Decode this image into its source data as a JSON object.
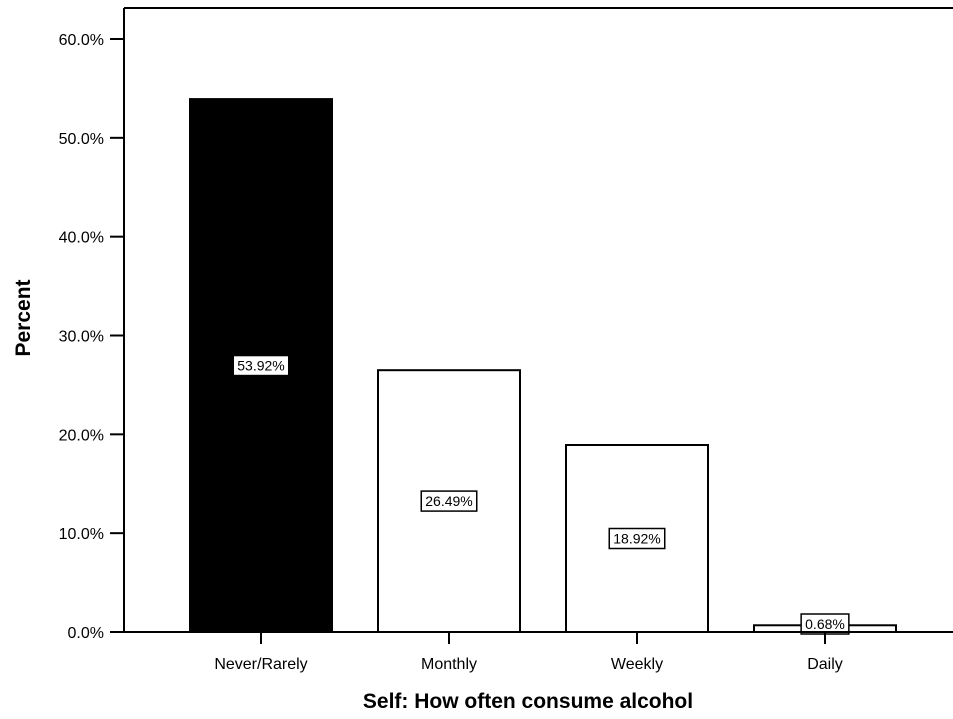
{
  "chart_data": {
    "type": "bar",
    "categories": [
      "Never/Rarely",
      "Monthly",
      "Weekly",
      "Daily"
    ],
    "values": [
      53.92,
      26.49,
      18.92,
      0.68
    ],
    "data_labels": [
      "53.92%",
      "26.49%",
      "18.92%",
      "0.68%"
    ],
    "bar_colors": [
      "#000000",
      "#ffffff",
      "#ffffff",
      "#ffffff"
    ],
    "xlabel": "Self: How often consume alcohol",
    "ylabel": "Percent",
    "ylim": [
      0,
      60
    ],
    "yticks": [
      0,
      10,
      20,
      30,
      40,
      50,
      60
    ],
    "ytick_labels": [
      "0.0%",
      "10.0%",
      "20.0%",
      "30.0%",
      "40.0%",
      "50.0%",
      "60.0%"
    ],
    "grid": false,
    "legend": "none"
  }
}
